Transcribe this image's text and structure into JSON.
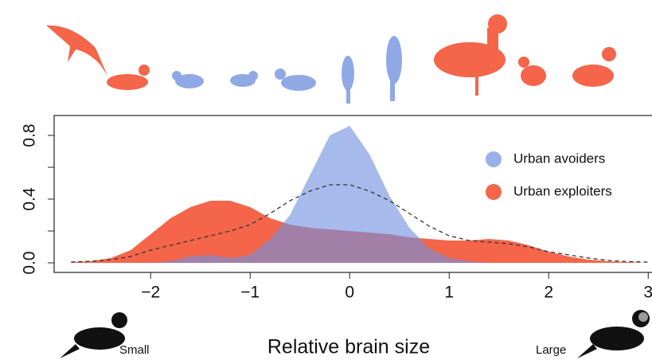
{
  "chart_data": {
    "type": "density",
    "xlabel": "Relative brain size",
    "annotations": [
      "Small",
      "Large"
    ],
    "x": [
      -2.8,
      -2.6,
      -2.4,
      -2.2,
      -2.0,
      -1.8,
      -1.6,
      -1.4,
      -1.2,
      -1.0,
      -0.8,
      -0.6,
      -0.4,
      -0.2,
      0,
      0.2,
      0.4,
      0.6,
      0.8,
      1.0,
      1.2,
      1.4,
      1.6,
      1.8,
      2.0,
      2.2,
      2.4,
      2.6,
      2.8,
      3.0
    ],
    "series": [
      {
        "name": "Urban exploiters",
        "color": "#f4654a",
        "values": [
          0.005,
          0.01,
          0.03,
          0.08,
          0.18,
          0.28,
          0.35,
          0.39,
          0.39,
          0.35,
          0.28,
          0.24,
          0.22,
          0.21,
          0.2,
          0.19,
          0.18,
          0.16,
          0.15,
          0.14,
          0.14,
          0.15,
          0.14,
          0.11,
          0.07,
          0.04,
          0.02,
          0.01,
          0.005,
          0
        ]
      },
      {
        "name": "Urban avoiders",
        "color": "#6f8fe0",
        "values": [
          0,
          0,
          0,
          0,
          0,
          0.01,
          0.04,
          0.05,
          0.03,
          0.05,
          0.15,
          0.3,
          0.55,
          0.8,
          0.86,
          0.68,
          0.42,
          0.22,
          0.09,
          0.03,
          0.01,
          0,
          0,
          0,
          0,
          0,
          0,
          0,
          0,
          0
        ]
      },
      {
        "color": "#333333",
        "style": "dashed",
        "values": [
          0.005,
          0.01,
          0.02,
          0.04,
          0.08,
          0.11,
          0.14,
          0.17,
          0.2,
          0.24,
          0.31,
          0.39,
          0.45,
          0.49,
          0.49,
          0.45,
          0.39,
          0.31,
          0.23,
          0.17,
          0.14,
          0.13,
          0.12,
          0.1,
          0.07,
          0.05,
          0.03,
          0.015,
          0.008,
          0.005
        ]
      }
    ],
    "legend_order": [
      1,
      0
    ],
    "legend": "upper right",
    "xlim": [
      -2.97,
      3.11
    ],
    "ylim": [
      -0.06,
      0.925
    ],
    "xticks": [
      {
        "value": -2,
        "label": "−2"
      },
      {
        "value": -1,
        "label": "−1"
      },
      0,
      1,
      2,
      3
    ],
    "yticks": [
      {
        "value": 0,
        "label": "0.0"
      },
      0.4,
      0.8
    ],
    "yminorticks": [
      0.2,
      0.6
    ]
  }
}
